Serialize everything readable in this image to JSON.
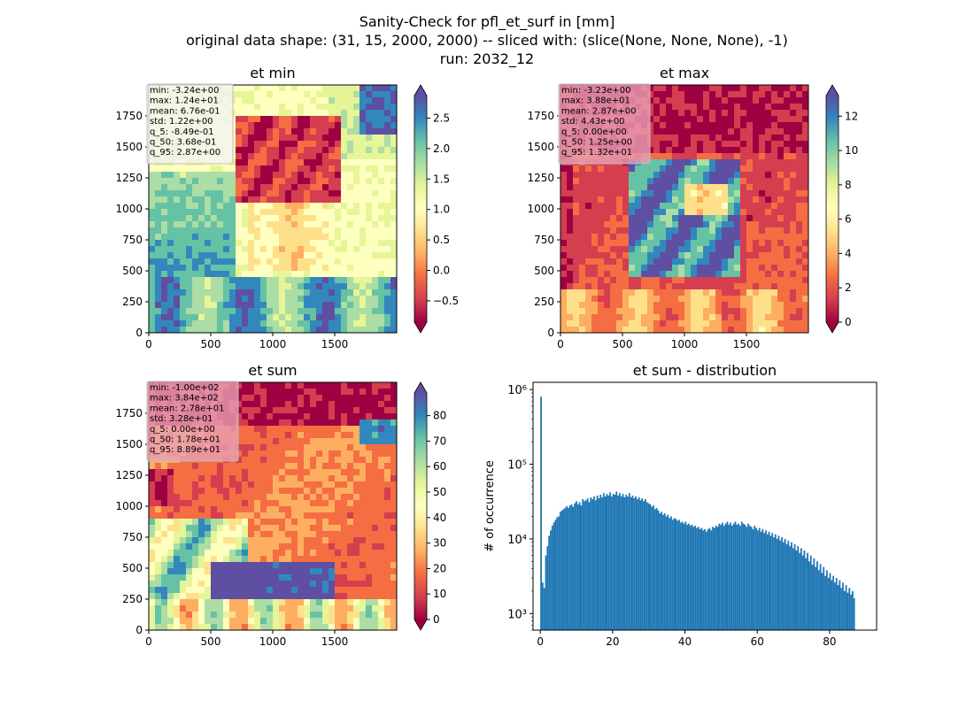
{
  "figure": {
    "title_lines": [
      "Sanity-Check for pfl_et_surf in [mm]",
      "original data shape: (31, 15, 2000, 2000) -- sliced with: (slice(None, None, None), -1)",
      "run: 2032_12"
    ]
  },
  "colors": {
    "spectral": [
      "#9e0142",
      "#d53e4f",
      "#f46d43",
      "#fdae61",
      "#fee08b",
      "#ffffbf",
      "#e6f598",
      "#abdda4",
      "#66c2a5",
      "#3288bd",
      "#5e4fa2"
    ],
    "hist_bar": "#1f77b4",
    "stats_box_light": "#f2f2f2",
    "stats_box_pink": "#e8a0b4"
  },
  "chart_data": [
    {
      "type": "heatmap",
      "title": "et min",
      "xlim": [
        0,
        2000
      ],
      "ylim": [
        0,
        2000
      ],
      "xticks": [
        0,
        500,
        1000,
        1500
      ],
      "yticks": [
        0,
        250,
        500,
        750,
        1000,
        1250,
        1500,
        1750
      ],
      "colorbar": {
        "min": -0.85,
        "max": 2.87,
        "ticks": [
          -0.5,
          0.0,
          0.5,
          1.0,
          1.5,
          2.0,
          2.5
        ],
        "extend": "both"
      },
      "stats": [
        "min: -3.24e+00",
        "max: 1.24e+01",
        "mean: 6.76e-01",
        "std: 1.22e+00",
        "q_5: -8.49e-01",
        "q_50: 3.68e-01",
        "q_95: 2.87e+00"
      ]
    },
    {
      "type": "heatmap",
      "title": "et max",
      "xlim": [
        0,
        2000
      ],
      "ylim": [
        0,
        2000
      ],
      "xticks": [
        0,
        500,
        1000,
        1500
      ],
      "yticks": [
        0,
        250,
        500,
        750,
        1000,
        1250,
        1500,
        1750
      ],
      "colorbar": {
        "min": 0,
        "max": 13.2,
        "ticks": [
          0,
          2,
          4,
          6,
          8,
          10,
          12
        ],
        "extend": "both"
      },
      "stats": [
        "min: -3.23e+00",
        "max: 3.88e+01",
        "mean: 2.87e+00",
        "std: 4.43e+00",
        "q_5: 0.00e+00",
        "q_50: 1.25e+00",
        "q_95: 1.32e+01"
      ]
    },
    {
      "type": "heatmap",
      "title": "et sum",
      "xlim": [
        0,
        2000
      ],
      "ylim": [
        0,
        2000
      ],
      "xticks": [
        0,
        500,
        1000,
        1500
      ],
      "yticks": [
        0,
        250,
        500,
        750,
        1000,
        1250,
        1500,
        1750
      ],
      "colorbar": {
        "min": 0,
        "max": 88.9,
        "ticks": [
          0,
          10,
          20,
          30,
          40,
          50,
          60,
          70,
          80
        ],
        "extend": "both"
      },
      "stats": [
        "min: -1.00e+02",
        "max: 3.84e+02",
        "mean: 2.78e+01",
        "std: 3.28e+01",
        "q_5: 0.00e+00",
        "q_50: 1.78e+01",
        "q_95: 8.89e+01"
      ]
    },
    {
      "type": "bar",
      "title": "et sum - distribution",
      "ylabel": "# of occurrence",
      "yscale": "log",
      "xlim": [
        -2,
        93
      ],
      "ylim": [
        600,
        1250000
      ],
      "xticks": [
        0,
        20,
        40,
        60,
        80
      ],
      "yticks": [
        {
          "value": 1000,
          "label": "10³"
        },
        {
          "value": 10000,
          "label": "10⁴"
        },
        {
          "value": 100000,
          "label": "10⁵"
        },
        {
          "value": 1000000,
          "label": "10⁶"
        }
      ],
      "bins": {
        "start": 0,
        "width": 0.444
      },
      "values": [
        800000,
        2600,
        2200,
        6000,
        8000,
        11000,
        13000,
        15000,
        16500,
        18000,
        19500,
        20000,
        23000,
        24000,
        25000,
        26000,
        27500,
        26000,
        28000,
        29000,
        27000,
        30000,
        32000,
        29000,
        31000,
        28000,
        34000,
        32000,
        33000,
        35000,
        31000,
        36000,
        34000,
        37000,
        33000,
        38000,
        35000,
        39000,
        36000,
        41000,
        37000,
        40000,
        38000,
        42000,
        37000,
        40000,
        39000,
        43000,
        38000,
        41000,
        37000,
        40000,
        36000,
        39000,
        37000,
        41000,
        36000,
        38000,
        35000,
        37000,
        34000,
        36000,
        33000,
        35000,
        32000,
        34000,
        31000,
        30000,
        29000,
        27000,
        28000,
        25000,
        26000,
        24000,
        22000,
        23000,
        21000,
        22000,
        20000,
        21000,
        19000,
        20000,
        18000,
        19000,
        18500,
        17500,
        18000,
        16500,
        17000,
        16000,
        17000,
        15500,
        16000,
        15000,
        15500,
        14500,
        15000,
        14000,
        14500,
        13500,
        14000,
        13000,
        13500,
        12500,
        13500,
        14000,
        13000,
        14500,
        14000,
        15000,
        14500,
        16000,
        15500,
        16500,
        15000,
        16000,
        17000,
        15500,
        16500,
        15000,
        16000,
        17000,
        15500,
        16000,
        15000,
        17000,
        16000,
        15500,
        14500,
        16000,
        15000,
        14500,
        13500,
        15000,
        14000,
        13000,
        14000,
        12500,
        13500,
        12000,
        13000,
        11500,
        12500,
        11000,
        12000,
        10500,
        11500,
        10000,
        11000,
        9500,
        10500,
        9000,
        10000,
        8500,
        9500,
        8000,
        9000,
        7500,
        8500,
        7000,
        8000,
        6500,
        7500,
        6000,
        7000,
        5500,
        6500,
        5000,
        6000,
        4500,
        5500,
        4200,
        5000,
        3800,
        4600,
        3500,
        4200,
        3200,
        3800,
        3000,
        3500,
        2800,
        3200,
        2600,
        3000,
        2400,
        2800,
        2200,
        2600,
        2000,
        2400,
        1900,
        2200,
        1800,
        2000,
        1600
      ]
    }
  ]
}
